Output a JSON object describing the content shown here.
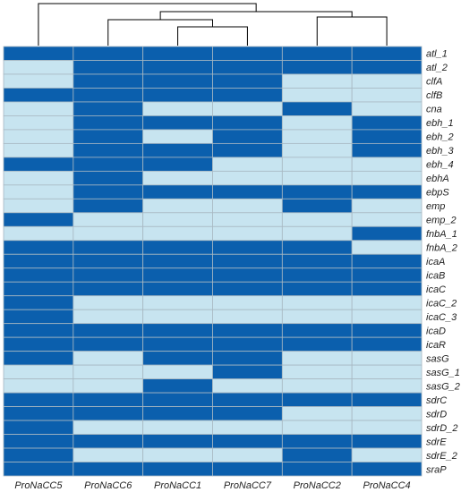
{
  "chart_data": {
    "type": "heatmap",
    "title": "",
    "colors": {
      "present": "#0b5fad",
      "absent": "#c7e4f0",
      "grid": "#a8b8c2",
      "dendrogram": "#000000"
    },
    "columns": [
      "ProNaCC5",
      "ProNaCC6",
      "ProNaCC1",
      "ProNaCC7",
      "ProNaCC2",
      "ProNaCC4"
    ],
    "rows": [
      "atl_1",
      "atl_2",
      "clfA",
      "clfB",
      "cna",
      "ebh_1",
      "ebh_2",
      "ebh_3",
      "ebh_4",
      "ebhA",
      "ebpS",
      "emp",
      "emp_2",
      "fnbA_1",
      "fnbA_2",
      "icaA",
      "icaB",
      "icaC",
      "icaC_2",
      "icaC_3",
      "icaD",
      "icaR",
      "sasG",
      "sasG_1",
      "sasG_2",
      "sdrC",
      "sdrD",
      "sdrD_2",
      "sdrE",
      "sdrE_2",
      "sraP"
    ],
    "values": [
      [
        1,
        1,
        1,
        1,
        1,
        1
      ],
      [
        0,
        1,
        1,
        1,
        1,
        1
      ],
      [
        0,
        1,
        1,
        1,
        0,
        0
      ],
      [
        1,
        1,
        1,
        1,
        0,
        0
      ],
      [
        0,
        1,
        0,
        0,
        1,
        0
      ],
      [
        0,
        1,
        1,
        1,
        0,
        1
      ],
      [
        0,
        1,
        0,
        1,
        0,
        1
      ],
      [
        0,
        1,
        1,
        1,
        0,
        1
      ],
      [
        1,
        1,
        1,
        0,
        0,
        0
      ],
      [
        0,
        1,
        0,
        0,
        0,
        0
      ],
      [
        0,
        1,
        1,
        1,
        1,
        1
      ],
      [
        0,
        1,
        0,
        0,
        1,
        0
      ],
      [
        1,
        0,
        0,
        0,
        0,
        0
      ],
      [
        0,
        0,
        0,
        0,
        0,
        1
      ],
      [
        1,
        1,
        1,
        1,
        1,
        0
      ],
      [
        1,
        1,
        1,
        1,
        1,
        1
      ],
      [
        1,
        1,
        1,
        1,
        1,
        1
      ],
      [
        1,
        1,
        1,
        1,
        1,
        1
      ],
      [
        1,
        0,
        0,
        0,
        0,
        0
      ],
      [
        1,
        0,
        0,
        0,
        0,
        0
      ],
      [
        1,
        1,
        1,
        1,
        1,
        1
      ],
      [
        1,
        1,
        1,
        1,
        1,
        1
      ],
      [
        1,
        0,
        1,
        1,
        0,
        0
      ],
      [
        0,
        0,
        0,
        1,
        0,
        0
      ],
      [
        0,
        0,
        1,
        0,
        0,
        0
      ],
      [
        1,
        1,
        1,
        1,
        1,
        1
      ],
      [
        1,
        1,
        1,
        1,
        0,
        0
      ],
      [
        1,
        0,
        0,
        0,
        0,
        0
      ],
      [
        1,
        1,
        1,
        1,
        1,
        1
      ],
      [
        1,
        0,
        0,
        0,
        1,
        0
      ],
      [
        1,
        1,
        1,
        1,
        1,
        1
      ]
    ],
    "dendrogram": [
      {
        "left": [
          0
        ],
        "right": [
          1
        ]
      }
    ]
  }
}
